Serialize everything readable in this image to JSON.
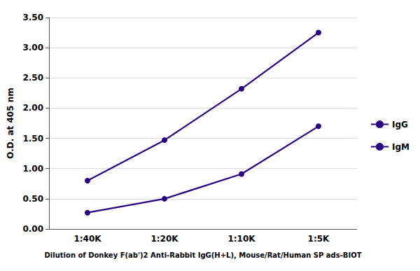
{
  "chart_data": {
    "type": "line",
    "xlabel": "Dilution of Donkey F(ab')2 Anti-Rabbit IgG(H+L), Mouse/Rat/Human SP ads-BIOT",
    "ylabel": "O.D. at 405 nm",
    "categories": [
      "1:40K",
      "1:20K",
      "1:10K",
      "1:5K"
    ],
    "series": [
      {
        "name": "IgG",
        "color": "#2a0080",
        "marker": "circle",
        "values": [
          0.8,
          1.47,
          2.32,
          3.25
        ]
      },
      {
        "name": "IgM",
        "color": "#2a0080",
        "marker": "circle",
        "values": [
          0.27,
          0.5,
          0.91,
          1.7
        ]
      }
    ],
    "ylim": [
      0,
      3.5
    ],
    "yticks": [
      {
        "value": 0,
        "label": "0.00"
      },
      {
        "value": 0.5,
        "label": "0.50"
      },
      {
        "value": 1,
        "label": "1.00"
      },
      {
        "value": 1.5,
        "label": "1.50"
      },
      {
        "value": 2,
        "label": "2.00"
      },
      {
        "value": 2.5,
        "label": "2.50"
      },
      {
        "value": 3,
        "label": "3.00"
      },
      {
        "value": 3.5,
        "label": "3.50"
      }
    ],
    "grid": true,
    "legend": "right"
  }
}
